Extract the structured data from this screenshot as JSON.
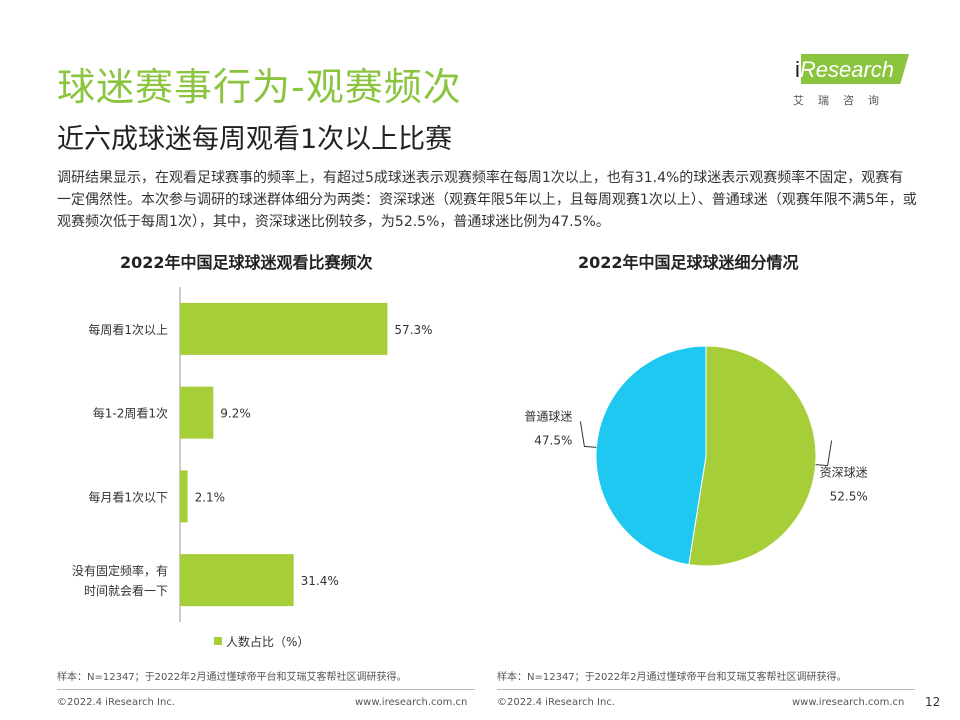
{
  "header": {
    "title": "球迷赛事行为-观赛频次",
    "subtitle": "近六成球迷每周观看1次以上比赛"
  },
  "logo": {
    "brand_i": "i",
    "brand_rest": "Research",
    "cn": "艾瑞咨询"
  },
  "intro": "调研结果显示，在观看足球赛事的频率上，有超过5成球迷表示观赛频率在每周1次以上，也有31.4%的球迷表示观赛频率不固定，观赛有一定偶然性。本次参与调研的球迷群体细分为两类：资深球迷（观赛年限5年以上，且每周观赛1次以上）、普通球迷（观赛年限不满5年，或观赛频次低于每周1次），其中，资深球迷比例较多，为52.5%，普通球迷比例为47.5%。",
  "colors": {
    "green": "#a6ce39",
    "cyan": "#1ec8f0",
    "brand": "#8bc53f"
  },
  "chart_data": [
    {
      "type": "bar",
      "orientation": "horizontal",
      "title": "2022年中国足球球迷观看比赛频次",
      "categories": [
        "每周看1次以上",
        "每1-2周看1次",
        "每月看1次以下",
        "没有固定频率，有时间就会看一下"
      ],
      "category_lines": [
        [
          "每周看1次以上"
        ],
        [
          "每1-2周看1次"
        ],
        [
          "每月看1次以下"
        ],
        [
          "没有固定频率，有",
          "时间就会看一下"
        ]
      ],
      "series": [
        {
          "name": "人数占比（%）",
          "values": [
            57.3,
            9.2,
            2.1,
            31.4
          ]
        }
      ],
      "value_labels": [
        "57.3%",
        "9.2%",
        "2.1%",
        "31.4%"
      ],
      "xlim": [
        0,
        100
      ],
      "legend": "bottom"
    },
    {
      "type": "pie",
      "title": "2022年中国足球球迷细分情况",
      "slices": [
        {
          "label": "资深球迷",
          "value": 52.5,
          "value_label": "52.5%",
          "color": "#a6ce39"
        },
        {
          "label": "普通球迷",
          "value": 47.5,
          "value_label": "47.5%",
          "color": "#1ec8f0"
        }
      ]
    }
  ],
  "notes": {
    "left": "样本：N=12347；于2022年2月通过懂球帝平台和艾瑞艾客帮社区调研获得。",
    "right": "样本：N=12347；于2022年2月通过懂球帝平台和艾瑞艾客帮社区调研获得。"
  },
  "footer": {
    "left_copyright": "©2022.4 iResearch Inc.",
    "left_url": "www.iresearch.com.cn",
    "right_copyright": "©2022.4 iResearch Inc.",
    "right_url": "www.iresearch.com.cn",
    "page": "12"
  }
}
